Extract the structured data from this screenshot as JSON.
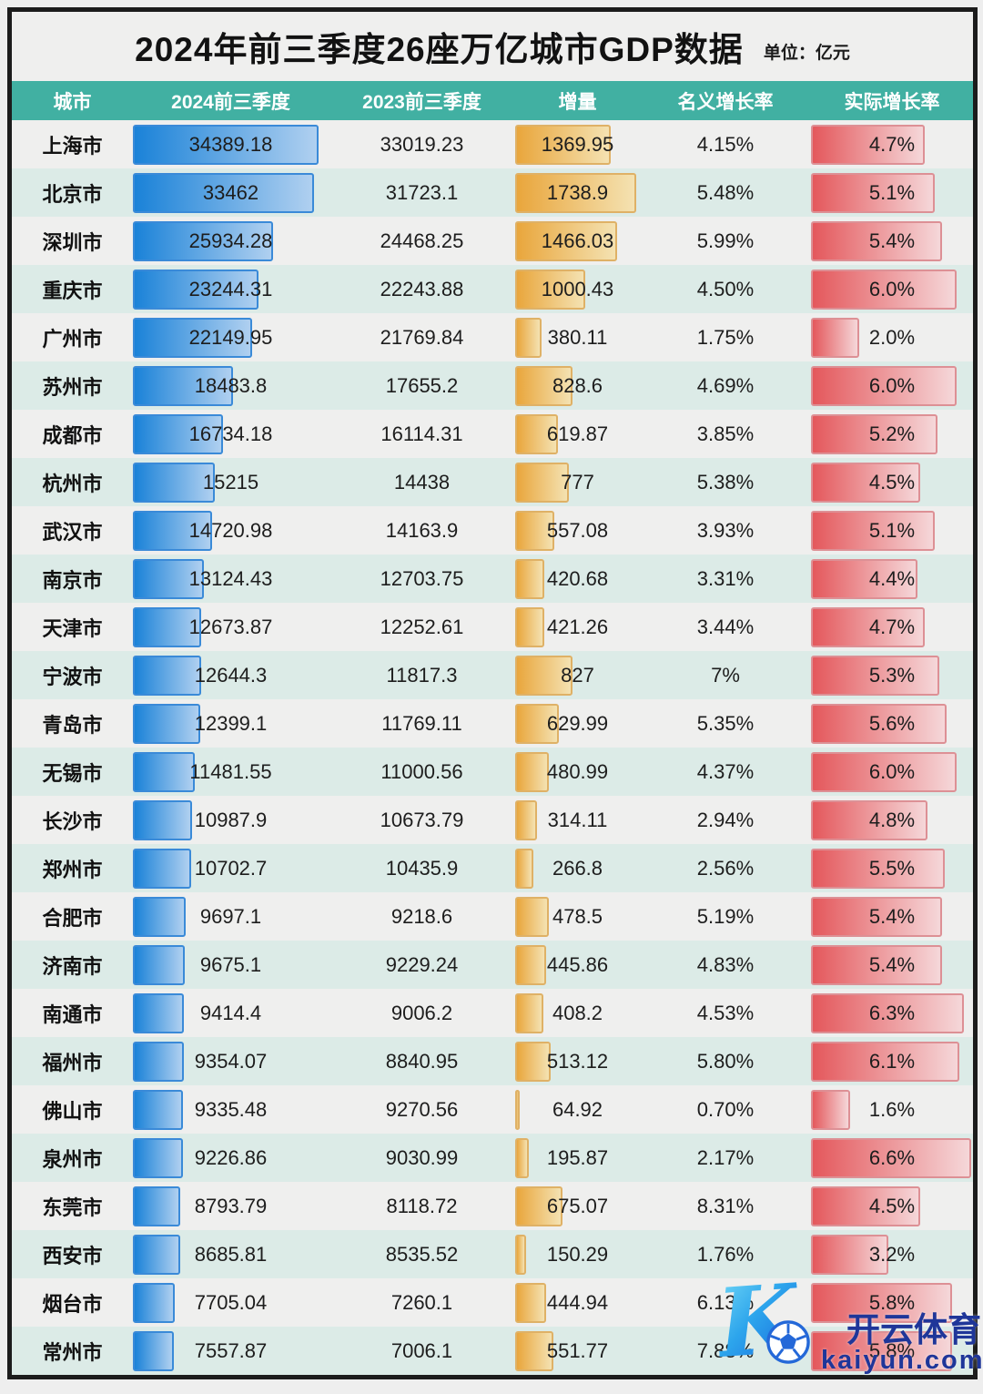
{
  "header": {
    "title": "2024年前三季度26座万亿城市GDP数据",
    "unit_label": "单位：亿元"
  },
  "chart_data": {
    "type": "table",
    "title": "2024年前三季度26座万亿城市GDP数据",
    "unit": "亿元",
    "columns": [
      "城市",
      "2024前三季度",
      "2023前三季度",
      "增量",
      "名义增长率",
      "实际增长率"
    ],
    "bar_columns": {
      "gdp_2024": "blue",
      "increase": "yellow",
      "real_growth": "red"
    },
    "rows": [
      {
        "city": "上海市",
        "gdp_2024": 34389.18,
        "gdp_2023": 33019.23,
        "increase": 1369.95,
        "nominal_growth": "4.15%",
        "real_growth": "4.7%"
      },
      {
        "city": "北京市",
        "gdp_2024": 33462,
        "gdp_2023": 31723.1,
        "increase": 1738.9,
        "nominal_growth": "5.48%",
        "real_growth": "5.1%"
      },
      {
        "city": "深圳市",
        "gdp_2024": 25934.28,
        "gdp_2023": 24468.25,
        "increase": 1466.03,
        "nominal_growth": "5.99%",
        "real_growth": "5.4%"
      },
      {
        "city": "重庆市",
        "gdp_2024": 23244.31,
        "gdp_2023": 22243.88,
        "increase": 1000.43,
        "nominal_growth": "4.50%",
        "real_growth": "6.0%"
      },
      {
        "city": "广州市",
        "gdp_2024": 22149.95,
        "gdp_2023": 21769.84,
        "increase": 380.11,
        "nominal_growth": "1.75%",
        "real_growth": "2.0%"
      },
      {
        "city": "苏州市",
        "gdp_2024": 18483.8,
        "gdp_2023": 17655.2,
        "increase": 828.6,
        "nominal_growth": "4.69%",
        "real_growth": "6.0%"
      },
      {
        "city": "成都市",
        "gdp_2024": 16734.18,
        "gdp_2023": 16114.31,
        "increase": 619.87,
        "nominal_growth": "3.85%",
        "real_growth": "5.2%"
      },
      {
        "city": "杭州市",
        "gdp_2024": 15215,
        "gdp_2023": 14438,
        "increase": 777,
        "nominal_growth": "5.38%",
        "real_growth": "4.5%"
      },
      {
        "city": "武汉市",
        "gdp_2024": 14720.98,
        "gdp_2023": 14163.9,
        "increase": 557.08,
        "nominal_growth": "3.93%",
        "real_growth": "5.1%"
      },
      {
        "city": "南京市",
        "gdp_2024": 13124.43,
        "gdp_2023": 12703.75,
        "increase": 420.68,
        "nominal_growth": "3.31%",
        "real_growth": "4.4%"
      },
      {
        "city": "天津市",
        "gdp_2024": 12673.87,
        "gdp_2023": 12252.61,
        "increase": 421.26,
        "nominal_growth": "3.44%",
        "real_growth": "4.7%"
      },
      {
        "city": "宁波市",
        "gdp_2024": 12644.3,
        "gdp_2023": 11817.3,
        "increase": 827,
        "nominal_growth": "7%",
        "real_growth": "5.3%"
      },
      {
        "city": "青岛市",
        "gdp_2024": 12399.1,
        "gdp_2023": 11769.11,
        "increase": 629.99,
        "nominal_growth": "5.35%",
        "real_growth": "5.6%"
      },
      {
        "city": "无锡市",
        "gdp_2024": 11481.55,
        "gdp_2023": 11000.56,
        "increase": 480.99,
        "nominal_growth": "4.37%",
        "real_growth": "6.0%"
      },
      {
        "city": "长沙市",
        "gdp_2024": 10987.9,
        "gdp_2023": 10673.79,
        "increase": 314.11,
        "nominal_growth": "2.94%",
        "real_growth": "4.8%"
      },
      {
        "city": "郑州市",
        "gdp_2024": 10702.7,
        "gdp_2023": 10435.9,
        "increase": 266.8,
        "nominal_growth": "2.56%",
        "real_growth": "5.5%"
      },
      {
        "city": "合肥市",
        "gdp_2024": 9697.1,
        "gdp_2023": 9218.6,
        "increase": 478.5,
        "nominal_growth": "5.19%",
        "real_growth": "5.4%"
      },
      {
        "city": "济南市",
        "gdp_2024": 9675.1,
        "gdp_2023": 9229.24,
        "increase": 445.86,
        "nominal_growth": "4.83%",
        "real_growth": "5.4%"
      },
      {
        "city": "南通市",
        "gdp_2024": 9414.4,
        "gdp_2023": 9006.2,
        "increase": 408.2,
        "nominal_growth": "4.53%",
        "real_growth": "6.3%"
      },
      {
        "city": "福州市",
        "gdp_2024": 9354.07,
        "gdp_2023": 8840.95,
        "increase": 513.12,
        "nominal_growth": "5.80%",
        "real_growth": "6.1%"
      },
      {
        "city": "佛山市",
        "gdp_2024": 9335.48,
        "gdp_2023": 9270.56,
        "increase": 64.92,
        "nominal_growth": "0.70%",
        "real_growth": "1.6%"
      },
      {
        "city": "泉州市",
        "gdp_2024": 9226.86,
        "gdp_2023": 9030.99,
        "increase": 195.87,
        "nominal_growth": "2.17%",
        "real_growth": "6.6%"
      },
      {
        "city": "东莞市",
        "gdp_2024": 8793.79,
        "gdp_2023": 8118.72,
        "increase": 675.07,
        "nominal_growth": "8.31%",
        "real_growth": "4.5%"
      },
      {
        "city": "西安市",
        "gdp_2024": 8685.81,
        "gdp_2023": 8535.52,
        "increase": 150.29,
        "nominal_growth": "1.76%",
        "real_growth": "3.2%"
      },
      {
        "city": "烟台市",
        "gdp_2024": 7705.04,
        "gdp_2023": 7260.1,
        "increase": 444.94,
        "nominal_growth": "6.13%",
        "real_growth": "5.8%"
      },
      {
        "city": "常州市",
        "gdp_2024": 7557.87,
        "gdp_2023": 7006.1,
        "increase": 551.77,
        "nominal_growth": "7.88%",
        "real_growth": "5.8%"
      }
    ]
  },
  "watermark": {
    "logo_letter": "K",
    "brand": "开云体育",
    "domain": "kaiyun.com"
  },
  "colors": {
    "page_bg": "#eeeeee",
    "frame": "#1c1c1c",
    "header_teal": "#41b0a2",
    "row_gray": "#efefee",
    "row_teal": "#dcebe7",
    "blue_start": "#1a82d8",
    "blue_end": "#b0d0f0",
    "blue_border": "#3a8ad8",
    "yellow_start": "#e9a63c",
    "yellow_end": "#f4e2b2",
    "yellow_border": "#dfb166",
    "red_start": "#e4585c",
    "red_end": "#f5d7d9",
    "red_border": "#dd9095",
    "wm_blue": "#1f3699"
  }
}
